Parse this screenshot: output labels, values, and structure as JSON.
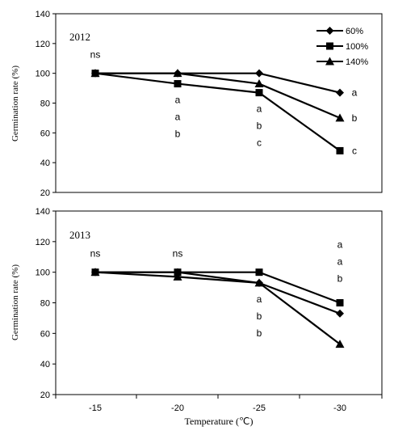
{
  "chart_data": [
    {
      "type": "line",
      "panel_label": "2012",
      "ylabel": "Germination rate (%)",
      "ylim": [
        20,
        140
      ],
      "yticks": [
        "20",
        "40",
        "60",
        "80",
        "100",
        "120",
        "140"
      ],
      "categories": [
        "-15",
        "-20",
        "-25",
        "-30"
      ],
      "series": [
        {
          "name": "60%",
          "marker": "diamond",
          "values": [
            100,
            100,
            100,
            87
          ]
        },
        {
          "name": "100%",
          "marker": "square",
          "values": [
            100,
            93,
            87,
            48
          ]
        },
        {
          "name": "140%",
          "marker": "triangle",
          "values": [
            100,
            100,
            93,
            70
          ]
        }
      ],
      "significance": [
        {
          "category": "-15",
          "labels": [
            "ns"
          ]
        },
        {
          "category": "-20",
          "labels": [
            "a",
            "a",
            "b"
          ]
        },
        {
          "category": "-25",
          "labels": [
            "a",
            "b",
            "c"
          ]
        },
        {
          "category": "-30",
          "labels": [
            "a",
            "b",
            "c"
          ],
          "placement": "beside-points"
        }
      ],
      "legend": {
        "position": "top-right"
      },
      "grid": false
    },
    {
      "type": "line",
      "panel_label": "2013",
      "ylabel": "Germination rate (%)",
      "xlabel": "Temperature (℃)",
      "ylim": [
        20,
        140
      ],
      "yticks": [
        "20",
        "40",
        "60",
        "80",
        "100",
        "120",
        "140"
      ],
      "categories": [
        "-15",
        "-20",
        "-25",
        "-30"
      ],
      "series": [
        {
          "name": "60%",
          "marker": "diamond",
          "values": [
            100,
            100,
            93,
            73
          ]
        },
        {
          "name": "100%",
          "marker": "square",
          "values": [
            100,
            100,
            100,
            80
          ]
        },
        {
          "name": "140%",
          "marker": "triangle",
          "values": [
            100,
            97,
            93,
            53
          ]
        }
      ],
      "significance": [
        {
          "category": "-15",
          "labels": [
            "ns"
          ]
        },
        {
          "category": "-20",
          "labels": [
            "ns"
          ]
        },
        {
          "category": "-25",
          "labels": [
            "a",
            "b",
            "b"
          ]
        },
        {
          "category": "-30",
          "labels": [
            "a",
            "a",
            "b"
          ],
          "placement": "above"
        }
      ],
      "grid": false
    }
  ]
}
